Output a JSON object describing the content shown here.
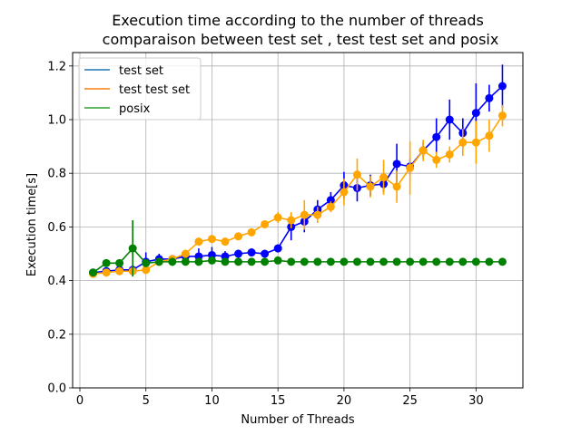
{
  "chart_data": {
    "type": "line",
    "title": "Execution time according to the number of threads",
    "subtitle": "comparaison between test set , test test set and posix",
    "xlabel": "Number of Threads",
    "ylabel": "Execution time[s]",
    "xlim": [
      -0.55,
      33.55
    ],
    "ylim": [
      0,
      1.25
    ],
    "xticks": [
      0,
      5,
      10,
      15,
      20,
      25,
      30
    ],
    "yticks": [
      0.0,
      0.2,
      0.4,
      0.6,
      0.8,
      1.0,
      1.2
    ],
    "ytick_labels": [
      "0.0",
      "0.2",
      "0.4",
      "0.6",
      "0.8",
      "1.0",
      "1.2"
    ],
    "grid": true,
    "legend_position": "upper-left",
    "x": [
      1,
      2,
      3,
      4,
      5,
      6,
      7,
      8,
      9,
      10,
      11,
      12,
      13,
      14,
      15,
      16,
      17,
      18,
      19,
      20,
      21,
      22,
      23,
      24,
      25,
      26,
      27,
      28,
      29,
      30,
      31,
      32
    ],
    "series": [
      {
        "name": "test set",
        "line_color": "#1f77b4",
        "marker_color": "#0000ff",
        "values": [
          0.43,
          0.435,
          0.44,
          0.44,
          0.47,
          0.48,
          0.48,
          0.49,
          0.49,
          0.495,
          0.49,
          0.5,
          0.505,
          0.5,
          0.52,
          0.6,
          0.62,
          0.665,
          0.7,
          0.755,
          0.745,
          0.755,
          0.76,
          0.835,
          0.825,
          0.885,
          0.935,
          1.0,
          0.95,
          1.025,
          1.08,
          1.125
        ],
        "errors": [
          0.01,
          0.01,
          0.01,
          0.01,
          0.035,
          0.02,
          0.01,
          0.02,
          0.03,
          0.03,
          0.02,
          0.015,
          0.015,
          0.01,
          0.015,
          0.05,
          0.04,
          0.035,
          0.03,
          0.05,
          0.05,
          0.04,
          0.03,
          0.075,
          0.03,
          0.03,
          0.07,
          0.075,
          0.055,
          0.11,
          0.05,
          0.08
        ]
      },
      {
        "name": "test test set",
        "line_color": "#ff7f0e",
        "marker_color": "#ffa500",
        "values": [
          0.425,
          0.43,
          0.435,
          0.435,
          0.44,
          0.47,
          0.48,
          0.5,
          0.545,
          0.555,
          0.545,
          0.565,
          0.58,
          0.61,
          0.635,
          0.625,
          0.645,
          0.645,
          0.675,
          0.73,
          0.795,
          0.75,
          0.785,
          0.75,
          0.82,
          0.885,
          0.85,
          0.87,
          0.915,
          0.915,
          0.94,
          1.015
        ],
        "errors": [
          0.01,
          0.01,
          0.01,
          0.01,
          0.01,
          0.015,
          0.01,
          0.015,
          0.015,
          0.015,
          0.015,
          0.01,
          0.015,
          0.01,
          0.02,
          0.03,
          0.055,
          0.03,
          0.02,
          0.05,
          0.06,
          0.04,
          0.065,
          0.06,
          0.1,
          0.04,
          0.03,
          0.03,
          0.05,
          0.08,
          0.06,
          0.04
        ]
      },
      {
        "name": "posix",
        "line_color": "#2ca02c",
        "marker_color": "#008000",
        "values": [
          0.43,
          0.465,
          0.465,
          0.52,
          0.465,
          0.47,
          0.47,
          0.47,
          0.47,
          0.475,
          0.47,
          0.47,
          0.47,
          0.47,
          0.475,
          0.47,
          0.47,
          0.47,
          0.47,
          0.47,
          0.47,
          0.47,
          0.47,
          0.47,
          0.47,
          0.47,
          0.47,
          0.47,
          0.47,
          0.47,
          0.47,
          0.47
        ],
        "errors": [
          0.01,
          0.01,
          0.01,
          0.105,
          0.01,
          0.005,
          0.015,
          0.005,
          0.005,
          0.005,
          0.005,
          0.005,
          0.005,
          0.005,
          0.005,
          0.005,
          0.005,
          0.005,
          0.005,
          0.005,
          0.005,
          0.005,
          0.005,
          0.005,
          0.005,
          0.005,
          0.005,
          0.005,
          0.005,
          0.005,
          0.005,
          0.005
        ]
      }
    ]
  }
}
